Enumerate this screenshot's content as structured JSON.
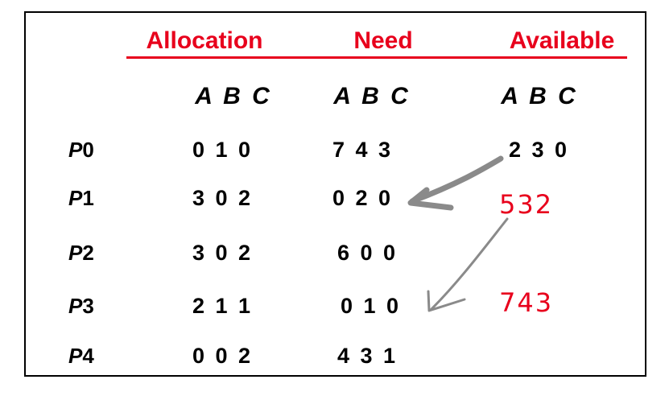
{
  "headers": {
    "allocation": "Allocation",
    "need": "Need",
    "available": "Available"
  },
  "subheaders": {
    "allocation": "A B C",
    "need": "A B C",
    "available": "A B C"
  },
  "rows": [
    {
      "p": "P",
      "n": "0",
      "allocation": "0 1 0",
      "need": "7 4 3",
      "available": "2 3 0"
    },
    {
      "p": "P",
      "n": "1",
      "allocation": "3 0 2",
      "need": "0 2 0",
      "available": ""
    },
    {
      "p": "P",
      "n": "2",
      "allocation": "3 0 2",
      "need": "6 0 0",
      "available": ""
    },
    {
      "p": "P",
      "n": "3",
      "allocation": "2 1 1",
      "need": "0 1 0",
      "available": ""
    },
    {
      "p": "P",
      "n": "4",
      "allocation": "0 0 2",
      "need": "4 3 1",
      "available": ""
    }
  ],
  "annotations": {
    "step1": "532",
    "step2": "743"
  },
  "colors": {
    "header": "#e8001c",
    "annotation": "#e8001c",
    "arrow": "#808080"
  }
}
